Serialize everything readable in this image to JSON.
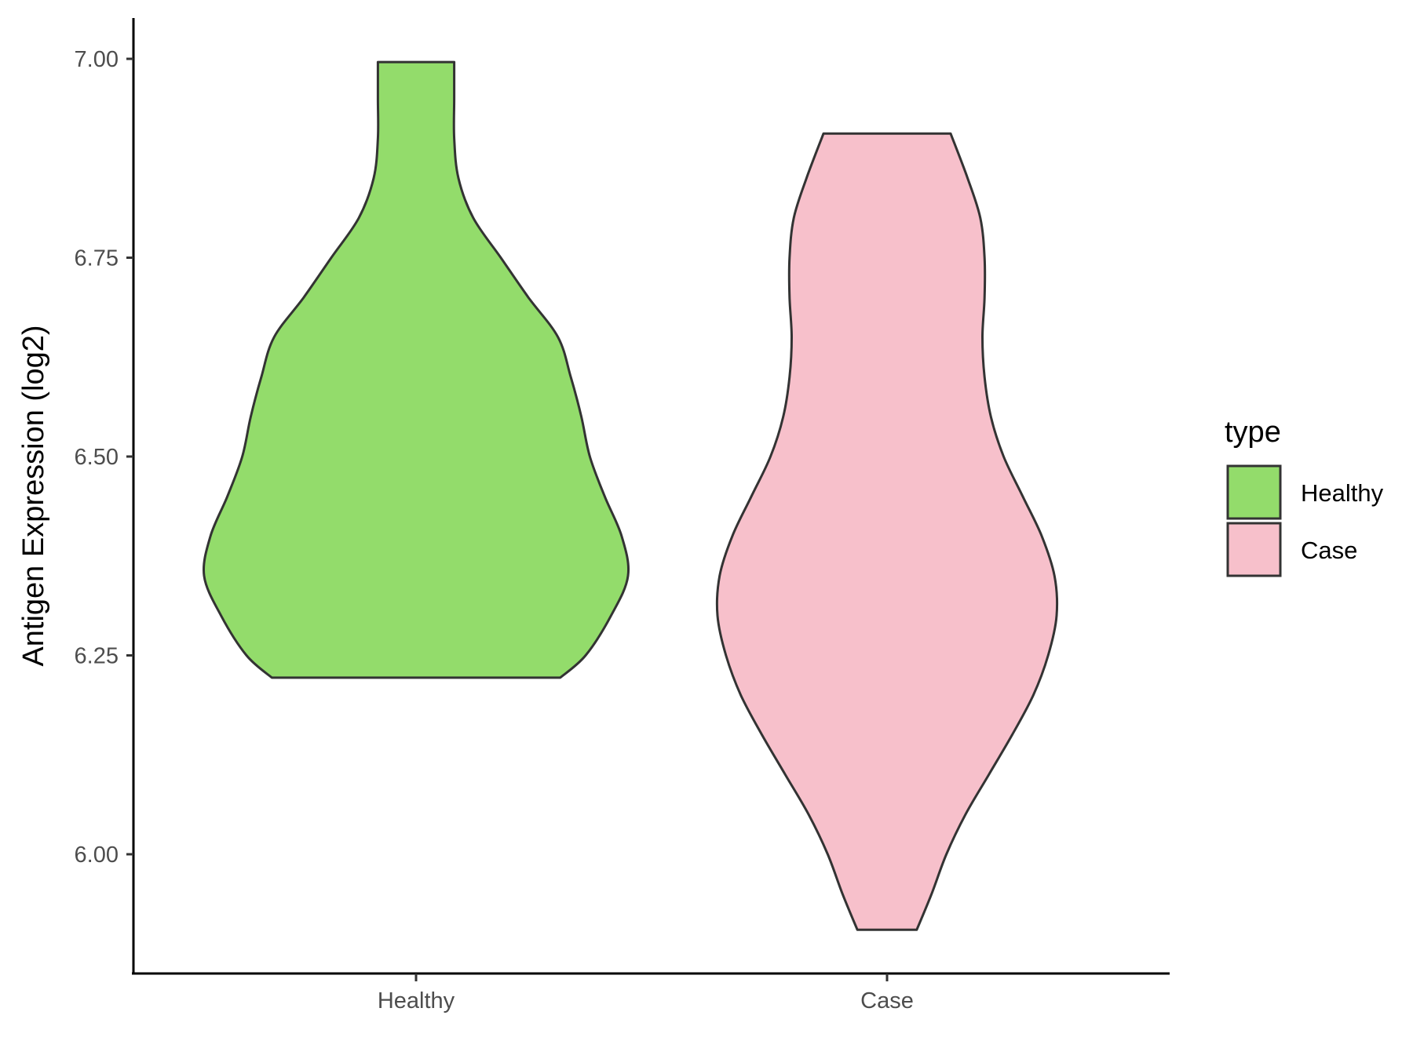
{
  "chart_data": {
    "type": "violin",
    "title": "",
    "xlabel": "",
    "ylabel": "Antigen Expression (log2)",
    "ylim": [
      5.87,
      7.05
    ],
    "yticks": [
      "6.00",
      "6.25",
      "6.50",
      "6.75",
      "7.00"
    ],
    "categories": [
      "Healthy",
      "Case"
    ],
    "grid": false,
    "legend": {
      "title": "type",
      "position": "right",
      "items": [
        {
          "label": "Healthy",
          "color": "#93dc6b"
        },
        {
          "label": "Case",
          "color": "#f7c0cb"
        }
      ]
    },
    "series": [
      {
        "category": "Healthy",
        "color": "#93dc6b",
        "min": 6.222,
        "max": 6.996,
        "density_profile": [
          [
            6.222,
            0.68
          ],
          [
            6.25,
            0.8
          ],
          [
            6.3,
            0.92
          ],
          [
            6.35,
            1.0
          ],
          [
            6.4,
            0.97
          ],
          [
            6.45,
            0.89
          ],
          [
            6.5,
            0.82
          ],
          [
            6.55,
            0.78
          ],
          [
            6.6,
            0.73
          ],
          [
            6.65,
            0.67
          ],
          [
            6.7,
            0.53
          ],
          [
            6.75,
            0.4
          ],
          [
            6.8,
            0.27
          ],
          [
            6.85,
            0.2
          ],
          [
            6.9,
            0.18
          ],
          [
            6.95,
            0.18
          ],
          [
            6.996,
            0.18
          ]
        ]
      },
      {
        "category": "Case",
        "color": "#f7c0cb",
        "min": 5.905,
        "max": 6.906,
        "density_profile": [
          [
            5.905,
            0.14
          ],
          [
            5.95,
            0.21
          ],
          [
            6.0,
            0.28
          ],
          [
            6.05,
            0.37
          ],
          [
            6.1,
            0.48
          ],
          [
            6.15,
            0.59
          ],
          [
            6.2,
            0.69
          ],
          [
            6.25,
            0.76
          ],
          [
            6.3,
            0.8
          ],
          [
            6.35,
            0.79
          ],
          [
            6.4,
            0.73
          ],
          [
            6.45,
            0.64
          ],
          [
            6.5,
            0.55
          ],
          [
            6.55,
            0.49
          ],
          [
            6.6,
            0.46
          ],
          [
            6.65,
            0.45
          ],
          [
            6.7,
            0.46
          ],
          [
            6.75,
            0.46
          ],
          [
            6.8,
            0.44
          ],
          [
            6.85,
            0.38
          ],
          [
            6.906,
            0.3
          ]
        ]
      }
    ]
  }
}
